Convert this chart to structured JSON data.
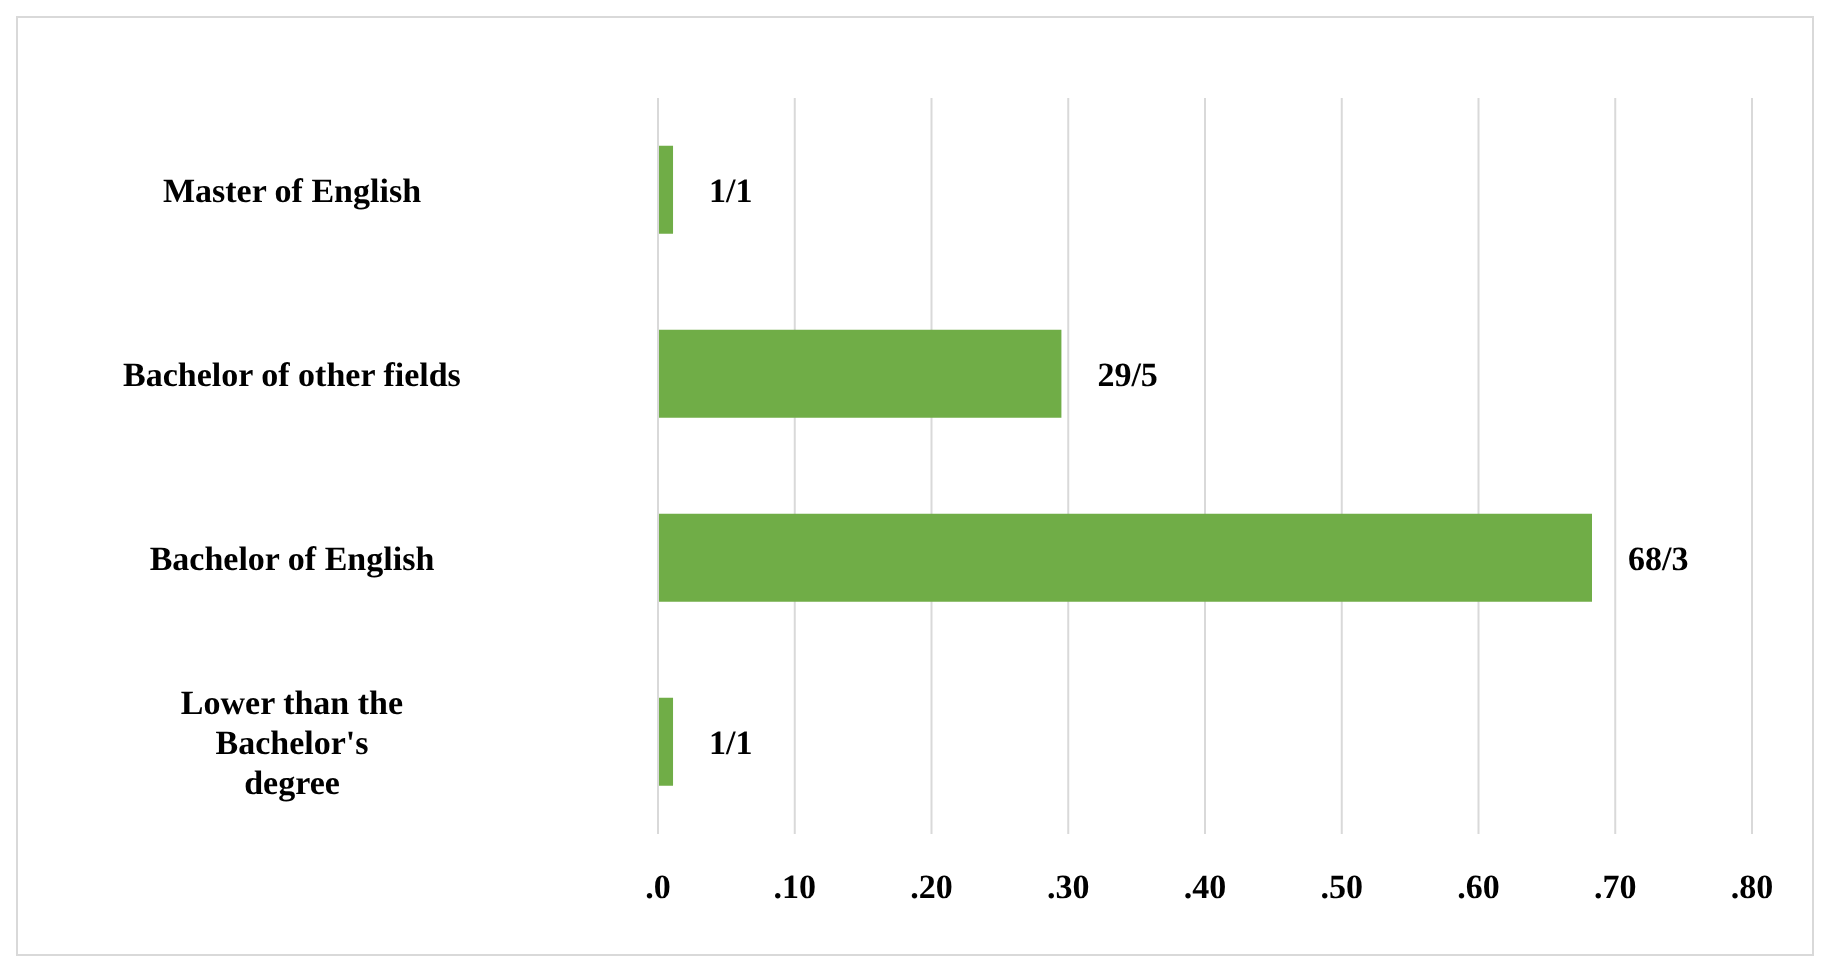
{
  "chart_data": {
    "type": "bar",
    "orientation": "horizontal",
    "categories": [
      "Master of English",
      "Bachelor of other fields",
      "Bachelor of English",
      "Lower than the Bachelor's degree"
    ],
    "values": [
      0.011,
      0.295,
      0.683,
      0.011
    ],
    "value_labels": [
      "1/1",
      "29/5",
      "68/3",
      "1/1"
    ],
    "color": "#70ad47",
    "xlim": [
      0,
      0.8
    ],
    "xticks": [
      {
        "value": 0,
        "label": ".0"
      },
      {
        "value": 0.1,
        "label": ".10"
      },
      {
        "value": 0.2,
        "label": ".20"
      },
      {
        "value": 0.3,
        "label": ".30"
      },
      {
        "value": 0.4,
        "label": ".40"
      },
      {
        "value": 0.5,
        "label": ".50"
      },
      {
        "value": 0.6,
        "label": ".60"
      },
      {
        "value": 0.7,
        "label": ".70"
      },
      {
        "value": 0.8,
        "label": ".80"
      }
    ],
    "grid": "x"
  }
}
